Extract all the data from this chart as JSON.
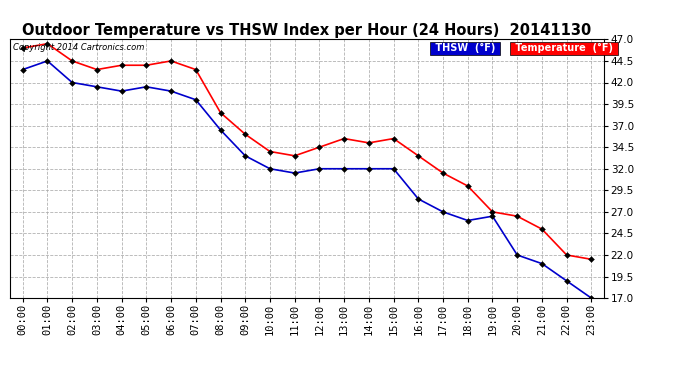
{
  "title": "Outdoor Temperature vs THSW Index per Hour (24 Hours)  20141130",
  "copyright": "Copyright 2014 Cartronics.com",
  "hours": [
    "00:00",
    "01:00",
    "02:00",
    "03:00",
    "04:00",
    "05:00",
    "06:00",
    "07:00",
    "08:00",
    "09:00",
    "10:00",
    "11:00",
    "12:00",
    "13:00",
    "14:00",
    "15:00",
    "16:00",
    "17:00",
    "18:00",
    "19:00",
    "20:00",
    "21:00",
    "22:00",
    "23:00"
  ],
  "temperature": [
    46.0,
    46.5,
    44.5,
    43.5,
    44.0,
    44.0,
    44.5,
    43.5,
    38.5,
    36.0,
    34.0,
    33.5,
    34.5,
    35.5,
    35.0,
    35.5,
    33.5,
    31.5,
    30.0,
    27.0,
    26.5,
    25.0,
    22.0,
    21.5
  ],
  "thsw": [
    43.5,
    44.5,
    42.0,
    41.5,
    41.0,
    41.5,
    41.0,
    40.0,
    36.5,
    33.5,
    32.0,
    31.5,
    32.0,
    32.0,
    32.0,
    32.0,
    28.5,
    27.0,
    26.0,
    26.5,
    22.0,
    21.0,
    19.0,
    17.0
  ],
  "temp_color": "#ff0000",
  "thsw_color": "#0000cc",
  "bg_color": "#ffffff",
  "grid_color": "#aaaaaa",
  "ylim_min": 17.0,
  "ylim_max": 47.0,
  "yticks": [
    17.0,
    19.5,
    22.0,
    24.5,
    27.0,
    29.5,
    32.0,
    34.5,
    37.0,
    39.5,
    42.0,
    44.5,
    47.0
  ],
  "title_fontsize": 10.5,
  "tick_fontsize": 7.5,
  "copyright_fontsize": 6,
  "legend_fontsize": 7,
  "marker_size": 3
}
